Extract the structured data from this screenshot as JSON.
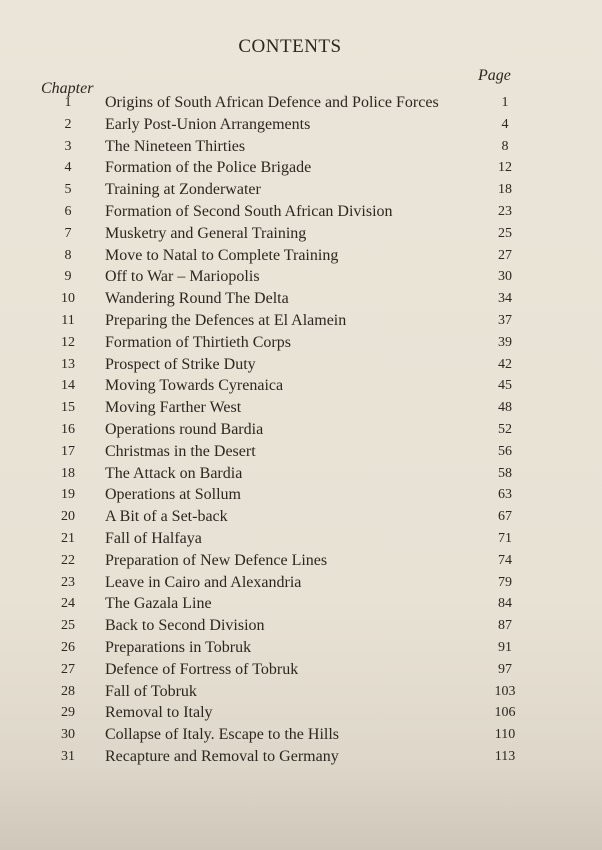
{
  "title": "CONTENTS",
  "chapter_header": "Chapter",
  "page_header": "Page",
  "entries": [
    {
      "chapter": "1",
      "title": "Origins of South African Defence and Police Forces",
      "page": "1"
    },
    {
      "chapter": "2",
      "title": "Early Post-Union Arrangements",
      "page": "4"
    },
    {
      "chapter": "3",
      "title": "The Nineteen Thirties",
      "page": "8"
    },
    {
      "chapter": "4",
      "title": "Formation of the Police Brigade",
      "page": "12"
    },
    {
      "chapter": "5",
      "title": "Training at Zonderwater",
      "page": "18"
    },
    {
      "chapter": "6",
      "title": "Formation of Second South African Division",
      "page": "23"
    },
    {
      "chapter": "7",
      "title": "Musketry and General Training",
      "page": "25"
    },
    {
      "chapter": "8",
      "title": "Move to Natal to Complete Training",
      "page": "27"
    },
    {
      "chapter": "9",
      "title": "Off to War – Mariopolis",
      "page": "30"
    },
    {
      "chapter": "10",
      "title": "Wandering Round The Delta",
      "page": "34"
    },
    {
      "chapter": "11",
      "title": "Preparing the Defences at El Alamein",
      "page": "37"
    },
    {
      "chapter": "12",
      "title": "Formation of Thirtieth Corps",
      "page": "39"
    },
    {
      "chapter": "13",
      "title": "Prospect of Strike Duty",
      "page": "42"
    },
    {
      "chapter": "14",
      "title": "Moving Towards Cyrenaica",
      "page": "45"
    },
    {
      "chapter": "15",
      "title": "Moving Farther West",
      "page": "48"
    },
    {
      "chapter": "16",
      "title": "Operations round Bardia",
      "page": "52"
    },
    {
      "chapter": "17",
      "title": "Christmas in the Desert",
      "page": "56"
    },
    {
      "chapter": "18",
      "title": "The Attack on Bardia",
      "page": "58"
    },
    {
      "chapter": "19",
      "title": "Operations at Sollum",
      "page": "63"
    },
    {
      "chapter": "20",
      "title": "A Bit of a Set-back",
      "page": "67"
    },
    {
      "chapter": "21",
      "title": "Fall of Halfaya",
      "page": "71"
    },
    {
      "chapter": "22",
      "title": "Preparation of New Defence Lines",
      "page": "74"
    },
    {
      "chapter": "23",
      "title": "Leave in Cairo and Alexandria",
      "page": "79"
    },
    {
      "chapter": "24",
      "title": "The Gazala Line",
      "page": "84"
    },
    {
      "chapter": "25",
      "title": "Back to Second Division",
      "page": "87"
    },
    {
      "chapter": "26",
      "title": "Preparations in Tobruk",
      "page": "91"
    },
    {
      "chapter": "27",
      "title": "Defence of Fortress of Tobruk",
      "page": "97"
    },
    {
      "chapter": "28",
      "title": "Fall of Tobruk",
      "page": "103"
    },
    {
      "chapter": "29",
      "title": "Removal to Italy",
      "page": "106"
    },
    {
      "chapter": "30",
      "title": "Collapse of Italy. Escape to the Hills",
      "page": "110"
    },
    {
      "chapter": "31",
      "title": "Recapture and Removal to Germany",
      "page": "113"
    }
  ]
}
